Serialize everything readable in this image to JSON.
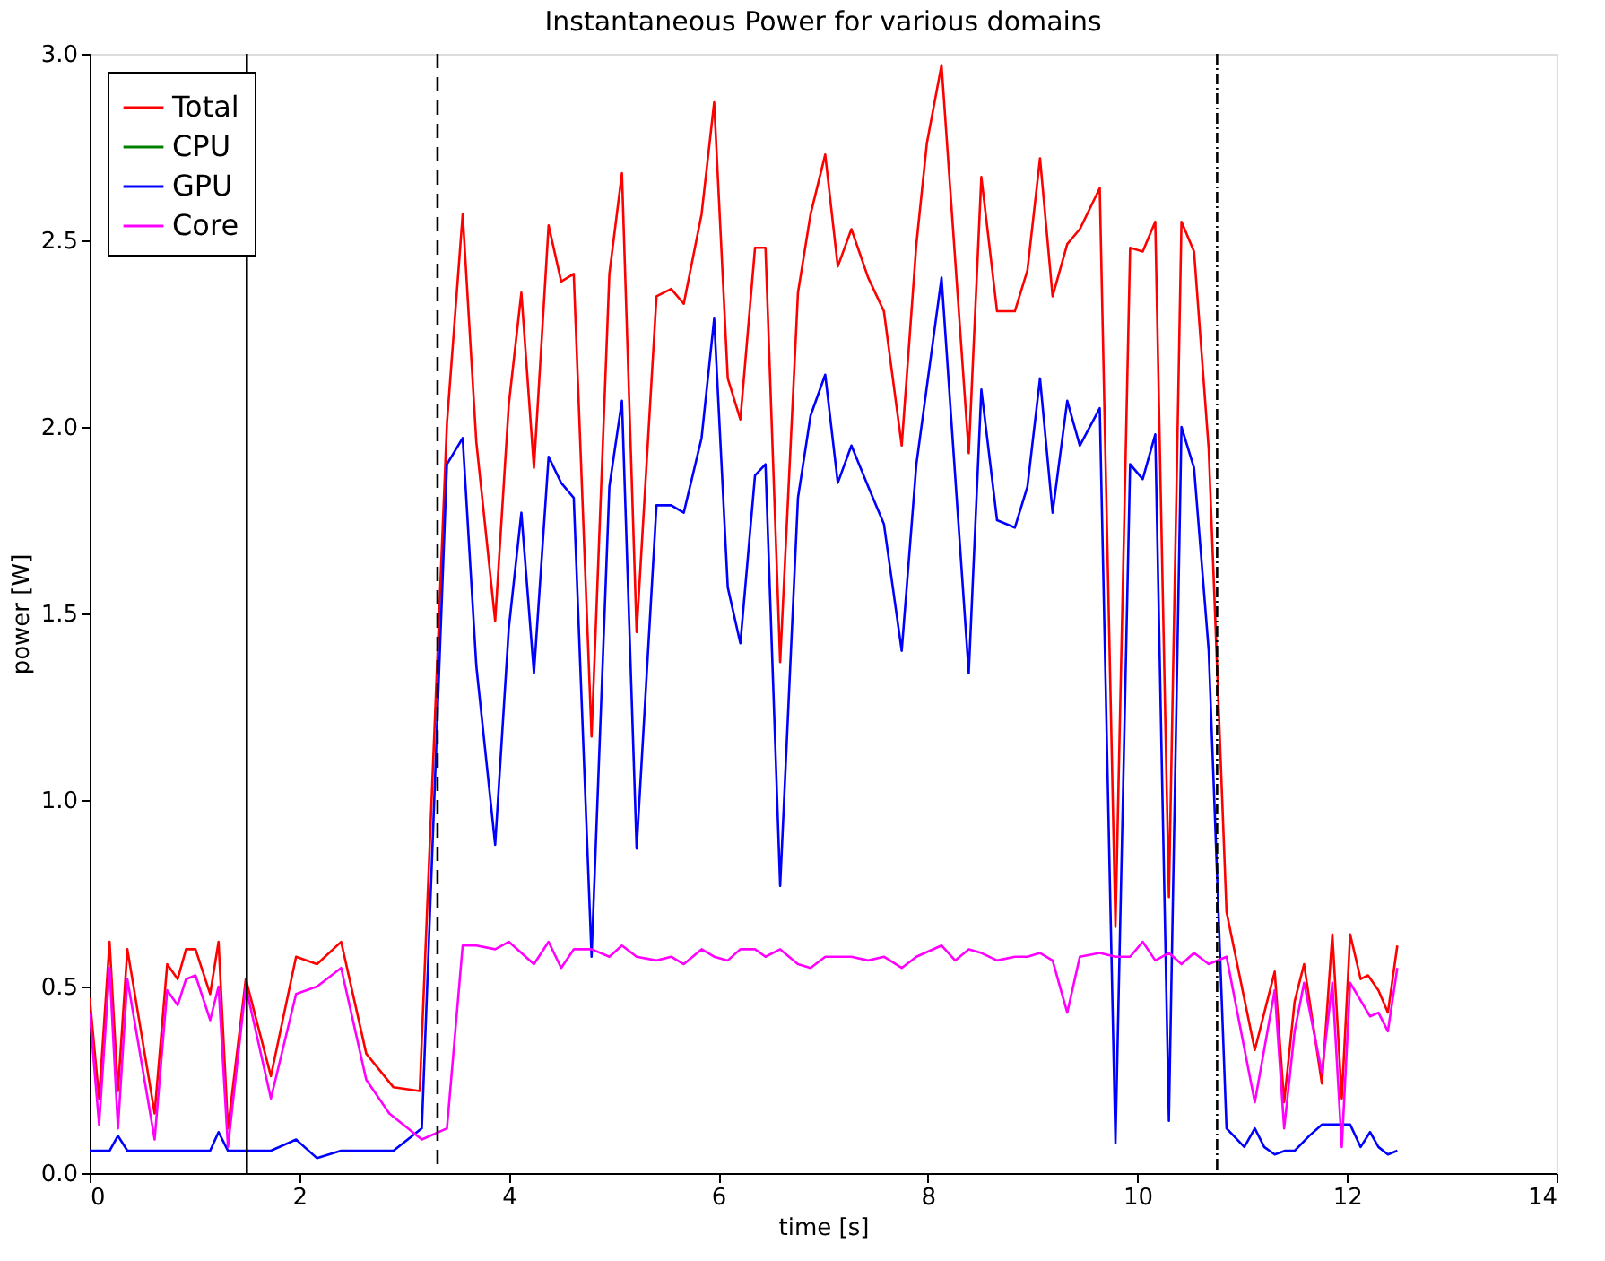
{
  "chart_data": {
    "type": "line",
    "title": "Instantaneous Power for various domains",
    "xlabel": "time [s]",
    "ylabel": "power [W]",
    "xlim": [
      0,
      14
    ],
    "xticks": [
      0,
      2,
      4,
      6,
      8,
      10,
      12,
      14
    ],
    "ylim": [
      0,
      3.0
    ],
    "yticks": [
      {
        "value": 0,
        "label": "0.0"
      },
      {
        "value": 0.5,
        "label": "0.5"
      },
      {
        "value": 1,
        "label": "1.0"
      },
      {
        "value": 1.5,
        "label": "1.5"
      },
      {
        "value": 2,
        "label": "2.0"
      },
      {
        "value": 2.5,
        "label": "2.5"
      },
      {
        "value": 3,
        "label": "3.0"
      }
    ],
    "grid": false,
    "legend": "top left",
    "marker": "none",
    "line_style": "solid",
    "series": [
      {
        "name": "Total",
        "color": "#ff0000",
        "x": [
          0,
          0.09,
          0.19,
          0.27,
          0.36,
          0.62,
          0.74,
          0.84,
          0.92,
          1.01,
          1.15,
          1.23,
          1.32,
          1.49,
          1.73,
          1.97,
          2.17,
          2.4,
          2.64,
          2.9,
          3.15,
          3.41,
          3.56,
          3.69,
          3.87,
          4.0,
          4.12,
          4.24,
          4.38,
          4.5,
          4.62,
          4.79,
          4.96,
          5.08,
          5.22,
          5.41,
          5.55,
          5.67,
          5.84,
          5.96,
          6.09,
          6.21,
          6.35,
          6.45,
          6.59,
          6.76,
          6.88,
          7.02,
          7.14,
          7.27,
          7.43,
          7.58,
          7.75,
          7.89,
          7.99,
          8.13,
          8.39,
          8.51,
          8.66,
          8.83,
          8.95,
          9.07,
          9.19,
          9.33,
          9.45,
          9.64,
          9.79,
          9.93,
          10.05,
          10.17,
          10.3,
          10.42,
          10.54,
          10.68,
          10.85,
          11.12,
          11.31,
          11.4,
          11.5,
          11.59,
          11.76,
          11.86,
          11.95,
          12.03,
          12.13,
          12.2,
          12.3,
          12.39,
          12.48
        ],
        "values": [
          0.47,
          0.2,
          0.62,
          0.22,
          0.6,
          0.16,
          0.56,
          0.52,
          0.6,
          0.6,
          0.48,
          0.62,
          0.12,
          0.52,
          0.26,
          0.58,
          0.56,
          0.62,
          0.32,
          0.23,
          0.22,
          2.01,
          2.57,
          1.96,
          1.48,
          2.06,
          2.36,
          1.89,
          2.54,
          2.39,
          2.41,
          1.17,
          2.41,
          2.68,
          1.45,
          2.35,
          2.37,
          2.33,
          2.57,
          2.87,
          2.13,
          2.02,
          2.48,
          2.48,
          1.37,
          2.36,
          2.57,
          2.73,
          2.43,
          2.53,
          2.4,
          2.31,
          1.95,
          2.49,
          2.76,
          2.97,
          1.93,
          2.67,
          2.31,
          2.31,
          2.42,
          2.72,
          2.35,
          2.49,
          2.53,
          2.64,
          0.66,
          2.48,
          2.47,
          2.55,
          0.74,
          2.55,
          2.47,
          1.94,
          0.7,
          0.33,
          0.54,
          0.19,
          0.46,
          0.56,
          0.24,
          0.64,
          0.2,
          0.64,
          0.52,
          0.53,
          0.49,
          0.43,
          0.61
        ]
      },
      {
        "name": "CPU",
        "color": "#008000"
      },
      {
        "name": "GPU",
        "color": "#0000ff",
        "x": [
          0,
          0.19,
          0.27,
          0.36,
          0.74,
          0.84,
          1.15,
          1.23,
          1.32,
          1.73,
          1.97,
          2.17,
          2.4,
          2.9,
          3.17,
          3.41,
          3.56,
          3.69,
          3.87,
          4.0,
          4.12,
          4.24,
          4.38,
          4.5,
          4.62,
          4.79,
          4.96,
          5.08,
          5.22,
          5.41,
          5.55,
          5.67,
          5.84,
          5.96,
          6.09,
          6.21,
          6.35,
          6.45,
          6.59,
          6.76,
          6.88,
          7.02,
          7.14,
          7.27,
          7.43,
          7.58,
          7.75,
          7.89,
          8.13,
          8.39,
          8.51,
          8.66,
          8.83,
          8.95,
          9.07,
          9.19,
          9.33,
          9.45,
          9.64,
          9.79,
          9.93,
          10.05,
          10.17,
          10.3,
          10.42,
          10.54,
          10.68,
          10.85,
          11.02,
          11.12,
          11.21,
          11.31,
          11.41,
          11.5,
          11.64,
          11.76,
          12.03,
          12.13,
          12.22,
          12.3,
          12.39,
          12.48
        ],
        "values": [
          0.06,
          0.06,
          0.1,
          0.06,
          0.06,
          0.06,
          0.06,
          0.11,
          0.06,
          0.06,
          0.09,
          0.04,
          0.06,
          0.06,
          0.12,
          1.9,
          1.97,
          1.36,
          0.88,
          1.46,
          1.77,
          1.34,
          1.92,
          1.85,
          1.81,
          0.58,
          1.84,
          2.07,
          0.87,
          1.79,
          1.79,
          1.77,
          1.97,
          2.29,
          1.57,
          1.42,
          1.87,
          1.9,
          0.77,
          1.81,
          2.03,
          2.14,
          1.85,
          1.95,
          1.84,
          1.74,
          1.4,
          1.9,
          2.4,
          1.34,
          2.1,
          1.75,
          1.73,
          1.84,
          2.13,
          1.77,
          2.07,
          1.95,
          2.05,
          0.08,
          1.9,
          1.86,
          1.98,
          0.14,
          2.0,
          1.89,
          1.4,
          0.12,
          0.07,
          0.12,
          0.07,
          0.05,
          0.06,
          0.06,
          0.1,
          0.13,
          0.13,
          0.07,
          0.11,
          0.07,
          0.05,
          0.06
        ]
      },
      {
        "name": "Core",
        "color": "#ff00ff",
        "x": [
          0,
          0.09,
          0.19,
          0.27,
          0.36,
          0.62,
          0.74,
          0.84,
          0.92,
          1.01,
          1.15,
          1.23,
          1.32,
          1.49,
          1.73,
          1.97,
          2.17,
          2.4,
          2.64,
          2.86,
          3.17,
          3.41,
          3.56,
          3.69,
          3.87,
          4.0,
          4.12,
          4.24,
          4.38,
          4.5,
          4.62,
          4.79,
          4.96,
          5.08,
          5.22,
          5.41,
          5.55,
          5.67,
          5.84,
          5.96,
          6.09,
          6.21,
          6.35,
          6.45,
          6.59,
          6.76,
          6.88,
          7.02,
          7.14,
          7.27,
          7.43,
          7.58,
          7.75,
          7.89,
          8.13,
          8.26,
          8.39,
          8.51,
          8.66,
          8.83,
          8.95,
          9.07,
          9.19,
          9.33,
          9.45,
          9.64,
          9.79,
          9.93,
          10.05,
          10.17,
          10.3,
          10.42,
          10.54,
          10.68,
          10.85,
          11.12,
          11.31,
          11.4,
          11.5,
          11.59,
          11.76,
          11.86,
          11.95,
          12.03,
          12.22,
          12.3,
          12.39,
          12.48
        ],
        "values": [
          0.43,
          0.13,
          0.55,
          0.12,
          0.52,
          0.09,
          0.49,
          0.45,
          0.52,
          0.53,
          0.41,
          0.5,
          0.07,
          0.5,
          0.2,
          0.48,
          0.5,
          0.55,
          0.25,
          0.16,
          0.09,
          0.12,
          0.61,
          0.61,
          0.6,
          0.62,
          0.59,
          0.56,
          0.62,
          0.55,
          0.6,
          0.6,
          0.58,
          0.61,
          0.58,
          0.57,
          0.58,
          0.56,
          0.6,
          0.58,
          0.57,
          0.6,
          0.6,
          0.58,
          0.6,
          0.56,
          0.55,
          0.58,
          0.58,
          0.58,
          0.57,
          0.58,
          0.55,
          0.58,
          0.61,
          0.57,
          0.6,
          0.59,
          0.57,
          0.58,
          0.58,
          0.59,
          0.57,
          0.43,
          0.58,
          0.59,
          0.58,
          0.58,
          0.62,
          0.57,
          0.59,
          0.56,
          0.59,
          0.56,
          0.58,
          0.19,
          0.49,
          0.12,
          0.38,
          0.51,
          0.27,
          0.51,
          0.07,
          0.51,
          0.42,
          0.43,
          0.38,
          0.55
        ]
      }
    ],
    "ref_lines": [
      {
        "axis": "x",
        "value": 1.5,
        "color": "#000000",
        "line_style": "solid"
      },
      {
        "axis": "x",
        "value": 3.32,
        "color": "#000000",
        "line_style": "dashed"
      },
      {
        "axis": "x",
        "value": 10.76,
        "color": "#000000",
        "line_style": "dashdot"
      }
    ]
  }
}
